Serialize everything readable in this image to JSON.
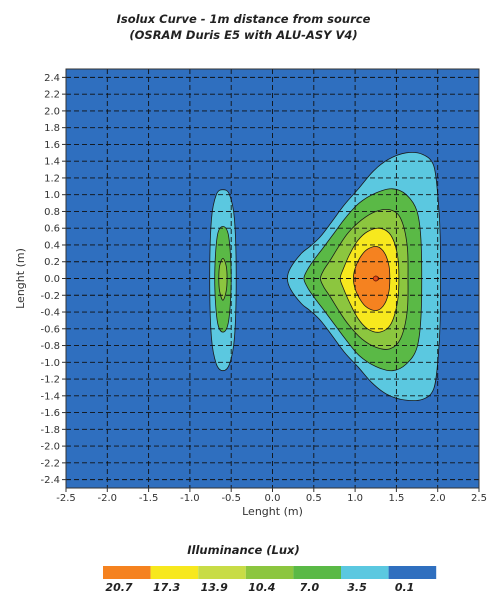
{
  "chart_data": {
    "type": "heatmap",
    "title": "Isolux Curve - 1m distance from source",
    "subtitle": "(OSRAM Duris E5 with ALU-ASY V4)",
    "xlabel": "Lenght (m)",
    "ylabel": "Lenght (m)",
    "xlim": [
      -2.5,
      2.5
    ],
    "ylim": [
      -2.5,
      2.5
    ],
    "x_ticks": [
      "-2.5",
      "-2.0",
      "-1.5",
      "-1.0",
      "-0.5",
      "0.0",
      "0.5",
      "1.0",
      "1.5",
      "2.0",
      "2.5"
    ],
    "y_ticks": [
      "2.4",
      "2.2",
      "2.0",
      "1.8",
      "1.6",
      "1.4",
      "1.2",
      "1.0",
      "0.8",
      "0.6",
      "0.4",
      "0.2",
      "0.0",
      "-0.2",
      "-0.4",
      "-0.6",
      "-0.8",
      "-1.0",
      "-1.2",
      "-1.4",
      "-1.6",
      "-1.8",
      "-2.0",
      "-2.2",
      "-2.4"
    ],
    "grid": true,
    "legend": {
      "title": "Illuminance (Lux)",
      "levels": [
        "20.7",
        "17.3",
        "13.9",
        "10.4",
        "7.0",
        "3.5",
        "0.1"
      ],
      "colors": [
        "#f58220",
        "#f7e81e",
        "#c8dc46",
        "#8cc63f",
        "#5ab946",
        "#5bc8e0",
        "#2f6fbf"
      ]
    },
    "background_color": "#2f6fbf",
    "regions": [
      {
        "name": "right-lobe",
        "contours": [
          {
            "level": 3.5,
            "color": "#5bc8e0",
            "points": [
              [
                0.18,
                0.0
              ],
              [
                0.22,
                0.13
              ],
              [
                0.35,
                0.3
              ],
              [
                0.45,
                0.38
              ],
              [
                0.58,
                0.5
              ],
              [
                0.72,
                0.68
              ],
              [
                0.87,
                0.88
              ],
              [
                1.04,
                1.07
              ],
              [
                1.22,
                1.28
              ],
              [
                1.4,
                1.42
              ],
              [
                1.62,
                1.5
              ],
              [
                1.82,
                1.48
              ],
              [
                1.95,
                1.35
              ],
              [
                2.0,
                1.0
              ],
              [
                2.03,
                0.5
              ],
              [
                2.03,
                -0.5
              ],
              [
                2.0,
                -1.0
              ],
              [
                1.95,
                -1.32
              ],
              [
                1.82,
                -1.44
              ],
              [
                1.6,
                -1.45
              ],
              [
                1.38,
                -1.38
              ],
              [
                1.2,
                -1.24
              ],
              [
                1.04,
                -1.06
              ],
              [
                0.87,
                -0.88
              ],
              [
                0.72,
                -0.68
              ],
              [
                0.58,
                -0.5
              ],
              [
                0.45,
                -0.38
              ],
              [
                0.35,
                -0.3
              ],
              [
                0.22,
                -0.13
              ]
            ]
          },
          {
            "level": 7.0,
            "color": "#5ab946",
            "points": [
              [
                0.38,
                0.0
              ],
              [
                0.42,
                0.1
              ],
              [
                0.5,
                0.22
              ],
              [
                0.6,
                0.35
              ],
              [
                0.73,
                0.52
              ],
              [
                0.88,
                0.72
              ],
              [
                1.05,
                0.9
              ],
              [
                1.25,
                1.02
              ],
              [
                1.45,
                1.07
              ],
              [
                1.62,
                1.0
              ],
              [
                1.75,
                0.8
              ],
              [
                1.8,
                0.4
              ],
              [
                1.8,
                -0.4
              ],
              [
                1.75,
                -0.82
              ],
              [
                1.62,
                -1.02
              ],
              [
                1.45,
                -1.1
              ],
              [
                1.25,
                -1.05
              ],
              [
                1.05,
                -0.92
              ],
              [
                0.88,
                -0.72
              ],
              [
                0.73,
                -0.52
              ],
              [
                0.6,
                -0.35
              ],
              [
                0.5,
                -0.22
              ],
              [
                0.42,
                -0.1
              ]
            ]
          },
          {
            "level": 10.4,
            "color": "#8cc63f",
            "points": [
              [
                0.58,
                0.0
              ],
              [
                0.62,
                0.1
              ],
              [
                0.7,
                0.22
              ],
              [
                0.8,
                0.38
              ],
              [
                0.92,
                0.55
              ],
              [
                1.08,
                0.7
              ],
              [
                1.25,
                0.8
              ],
              [
                1.42,
                0.82
              ],
              [
                1.55,
                0.72
              ],
              [
                1.63,
                0.4
              ],
              [
                1.64,
                0.0
              ],
              [
                1.63,
                -0.4
              ],
              [
                1.55,
                -0.72
              ],
              [
                1.42,
                -0.84
              ],
              [
                1.25,
                -0.82
              ],
              [
                1.08,
                -0.72
              ],
              [
                0.92,
                -0.55
              ],
              [
                0.8,
                -0.38
              ],
              [
                0.7,
                -0.22
              ],
              [
                0.62,
                -0.1
              ]
            ]
          },
          {
            "level": 13.9,
            "color": "#f7e81e",
            "points": [
              [
                0.82,
                0.0
              ],
              [
                0.86,
                0.12
              ],
              [
                0.93,
                0.28
              ],
              [
                1.03,
                0.45
              ],
              [
                1.15,
                0.56
              ],
              [
                1.3,
                0.6
              ],
              [
                1.43,
                0.52
              ],
              [
                1.51,
                0.3
              ],
              [
                1.53,
                0.0
              ],
              [
                1.51,
                -0.3
              ],
              [
                1.43,
                -0.55
              ],
              [
                1.3,
                -0.64
              ],
              [
                1.15,
                -0.6
              ],
              [
                1.03,
                -0.47
              ],
              [
                0.93,
                -0.28
              ],
              [
                0.86,
                -0.12
              ]
            ]
          },
          {
            "level": 17.3,
            "color": "#f58220",
            "points": [
              [
                0.98,
                0.0
              ],
              [
                1.0,
                0.12
              ],
              [
                1.06,
                0.25
              ],
              [
                1.15,
                0.35
              ],
              [
                1.27,
                0.38
              ],
              [
                1.36,
                0.3
              ],
              [
                1.41,
                0.15
              ],
              [
                1.42,
                0.0
              ],
              [
                1.41,
                -0.15
              ],
              [
                1.36,
                -0.3
              ],
              [
                1.27,
                -0.38
              ],
              [
                1.15,
                -0.35
              ],
              [
                1.06,
                -0.25
              ],
              [
                1.0,
                -0.12
              ]
            ]
          },
          {
            "level": 20.7,
            "color": "#f58220",
            "points": [
              [
                1.22,
                0.0
              ],
              [
                1.25,
                0.03
              ],
              [
                1.29,
                0.0
              ],
              [
                1.25,
                -0.03
              ]
            ]
          }
        ]
      },
      {
        "name": "left-lobe",
        "contours": [
          {
            "level": 3.5,
            "color": "#5bc8e0",
            "points": [
              [
                -0.6,
                1.06
              ],
              [
                -0.52,
                1.0
              ],
              [
                -0.46,
                0.7
              ],
              [
                -0.44,
                0.0
              ],
              [
                -0.46,
                -0.7
              ],
              [
                -0.52,
                -1.02
              ],
              [
                -0.6,
                -1.1
              ],
              [
                -0.68,
                -1.02
              ],
              [
                -0.74,
                -0.7
              ],
              [
                -0.76,
                0.0
              ],
              [
                -0.74,
                0.7
              ],
              [
                -0.68,
                1.0
              ]
            ]
          },
          {
            "level": 7.0,
            "color": "#5ab946",
            "points": [
              [
                -0.6,
                0.62
              ],
              [
                -0.53,
                0.5
              ],
              [
                -0.5,
                0.0
              ],
              [
                -0.53,
                -0.5
              ],
              [
                -0.6,
                -0.64
              ],
              [
                -0.67,
                -0.5
              ],
              [
                -0.7,
                0.0
              ],
              [
                -0.67,
                0.5
              ]
            ]
          },
          {
            "level": 10.4,
            "color": "#8cc63f",
            "points": [
              [
                -0.6,
                0.24
              ],
              [
                -0.56,
                0.15
              ],
              [
                -0.55,
                0.0
              ],
              [
                -0.56,
                -0.15
              ],
              [
                -0.6,
                -0.26
              ],
              [
                -0.64,
                -0.15
              ],
              [
                -0.65,
                0.0
              ],
              [
                -0.64,
                0.15
              ]
            ]
          }
        ]
      }
    ]
  }
}
